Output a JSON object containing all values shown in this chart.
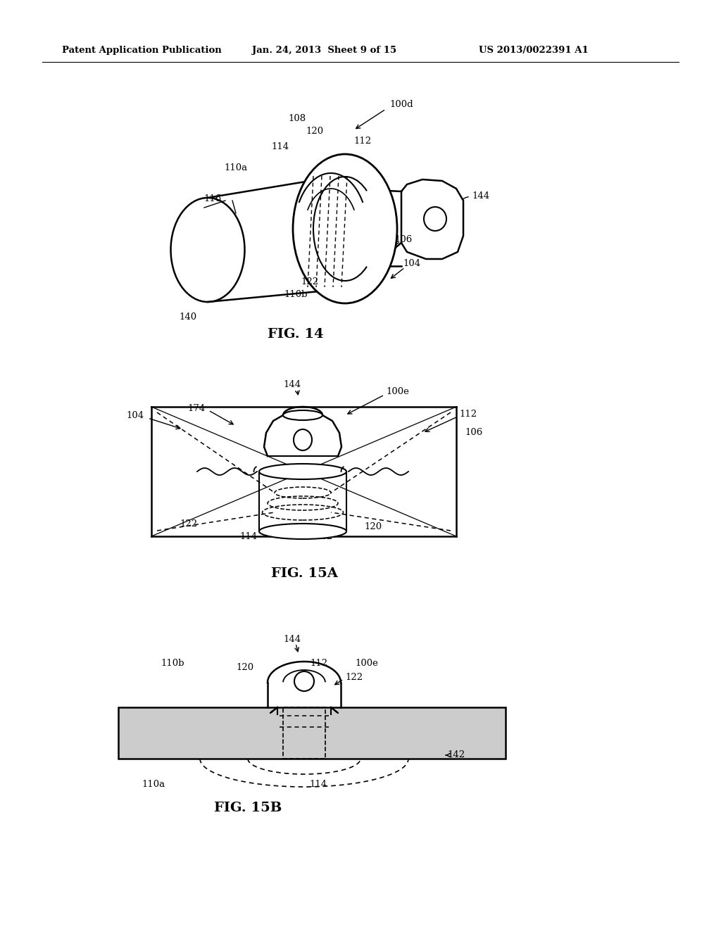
{
  "header_left": "Patent Application Publication",
  "header_center": "Jan. 24, 2013  Sheet 9 of 15",
  "header_right": "US 2013/0022391 A1",
  "fig14_caption": "FIG. 14",
  "fig15a_caption": "FIG. 15A",
  "fig15b_caption": "FIG. 15B",
  "bg": "#ffffff",
  "lc": "#000000"
}
